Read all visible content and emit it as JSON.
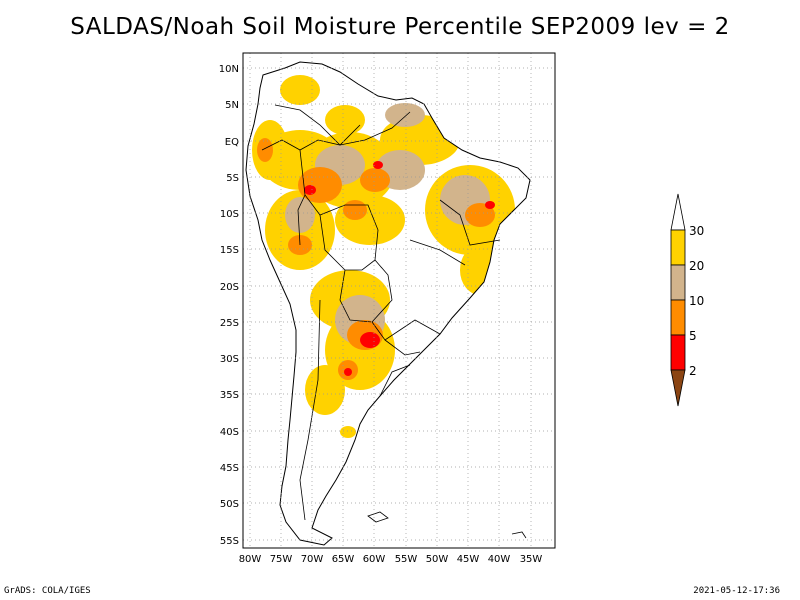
{
  "title": "SALDAS/Noah Soil Moisture Percentile SEP2009 lev = 2",
  "map": {
    "lat_labels": [
      "10N",
      "5N",
      "EQ",
      "5S",
      "10S",
      "15S",
      "20S",
      "25S",
      "30S",
      "35S",
      "40S",
      "45S",
      "50S",
      "55S"
    ],
    "lon_labels": [
      "80W",
      "75W",
      "70W",
      "65W",
      "60W",
      "55W",
      "50W",
      "45W",
      "40W",
      "35W"
    ]
  },
  "legend": {
    "labels": [
      "30",
      "20",
      "10",
      "5",
      "2"
    ],
    "colors": {
      "gt30": "#ffffff",
      "c20_30": "#ffd200",
      "c10_20": "#d2b48c",
      "c5_10": "#ff8c00",
      "c2_5": "#ff0000",
      "lt2": "#8b4513"
    }
  },
  "footer": {
    "left": "GrADS: COLA/IGES",
    "right": "2021-05-12-17:36"
  }
}
